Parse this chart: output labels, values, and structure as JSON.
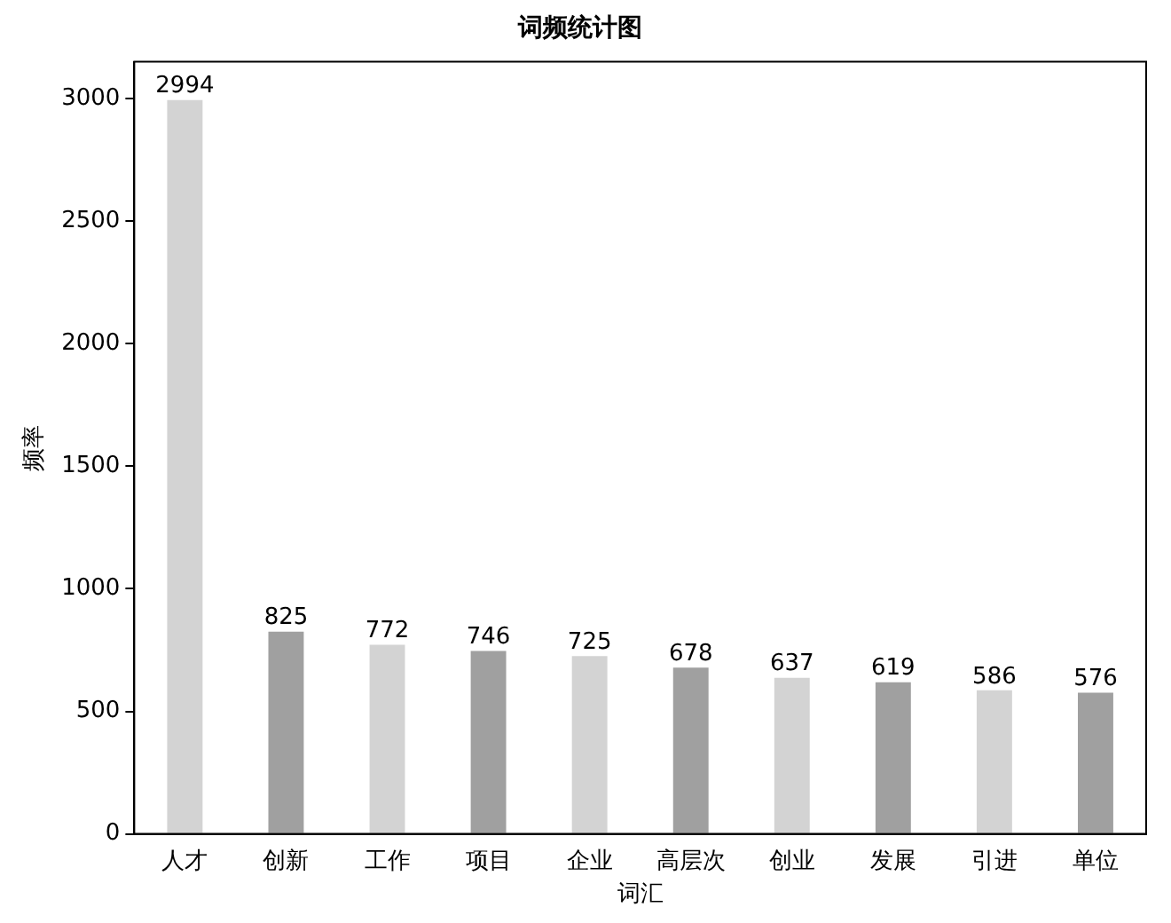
{
  "chart_data": {
    "type": "bar",
    "title": "词频统计图",
    "xlabel": "词汇",
    "ylabel": "频率",
    "categories": [
      "人才",
      "创新",
      "工作",
      "项目",
      "企业",
      "高层次",
      "创业",
      "发展",
      "引进",
      "单位"
    ],
    "values": [
      2994,
      825,
      772,
      746,
      725,
      678,
      637,
      619,
      586,
      576
    ],
    "colors": [
      "#d3d3d3",
      "#a0a0a0",
      "#d3d3d3",
      "#a0a0a0",
      "#d3d3d3",
      "#a0a0a0",
      "#d3d3d3",
      "#a0a0a0",
      "#d3d3d3",
      "#a0a0a0"
    ],
    "ylim": [
      0,
      3150
    ],
    "yticks": [
      0,
      500,
      1000,
      1500,
      2000,
      2500,
      3000
    ],
    "data_labels": true,
    "grid": false,
    "legend": false
  }
}
